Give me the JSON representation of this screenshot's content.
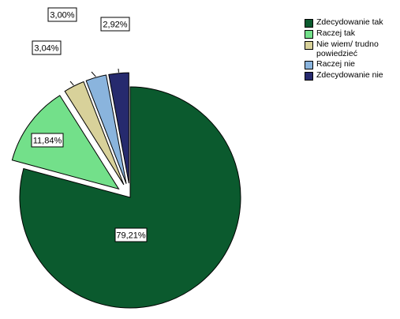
{
  "chart_data": {
    "type": "pie",
    "title": "",
    "categories": [
      "Zdecydowanie tak",
      "Raczej tak",
      "Nie wiem/ trudno powiedzieć",
      "Raczej nie",
      "Zdecydowanie nie"
    ],
    "values": [
      79.21,
      11.84,
      3.04,
      3.0,
      2.92
    ],
    "data_labels": [
      "79,21%",
      "11,84%",
      "3,04%",
      "3,00%",
      "2,92%"
    ],
    "colors": [
      "#0b5a2e",
      "#73e08a",
      "#d8d19a",
      "#8ab4dd",
      "#262a6e"
    ],
    "exploded": [
      false,
      true,
      true,
      true,
      true
    ],
    "legend_position": "top-right"
  }
}
